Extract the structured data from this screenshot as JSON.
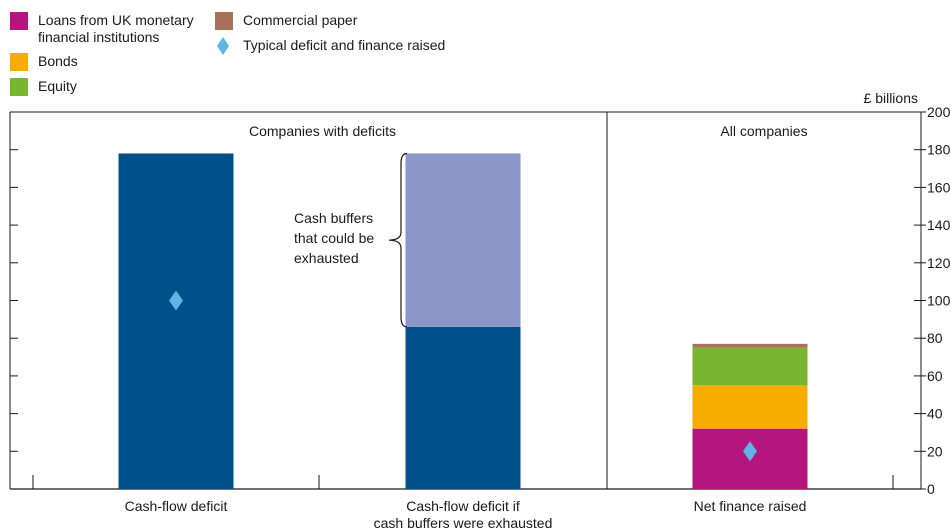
{
  "chart_data": {
    "type": "bar",
    "unit_label": "£ billions",
    "ylim": [
      0,
      200
    ],
    "yticks": [
      0,
      20,
      40,
      60,
      80,
      100,
      120,
      140,
      160,
      180,
      200
    ],
    "panels": [
      {
        "title": "Companies with deficits"
      },
      {
        "title": "All companies"
      }
    ],
    "categories": [
      "Cash-flow deficit",
      "Cash-flow deficit if\ncash buffers were exhausted",
      "Net finance raised"
    ],
    "bars": [
      {
        "category": "Cash-flow deficit",
        "panel": 0,
        "segments": [
          {
            "name": "Cash-flow deficit",
            "from": 0,
            "to": 178,
            "color": "#00508c"
          }
        ],
        "marker": 100
      },
      {
        "category": "Cash-flow deficit if cash buffers were exhausted",
        "panel": 0,
        "segments": [
          {
            "name": "Cash-flow deficit",
            "from": 0,
            "to": 86,
            "color": "#00508c"
          },
          {
            "name": "Cash buffers that could be exhausted",
            "from": 86,
            "to": 178,
            "color": "#8b96c9"
          }
        ]
      },
      {
        "category": "Net finance raised",
        "panel": 1,
        "segments": [
          {
            "name": "Loans from UK monetary financial institutions",
            "from": 0,
            "to": 32,
            "color": "#b5157f"
          },
          {
            "name": "Bonds",
            "from": 32,
            "to": 55,
            "color": "#f7ac00"
          },
          {
            "name": "Equity",
            "from": 55,
            "to": 75,
            "color": "#79b52f"
          },
          {
            "name": "Commercial paper",
            "from": 75,
            "to": 77,
            "color": "#a9705a"
          }
        ],
        "marker": 20
      }
    ],
    "annotation": {
      "lines": [
        "Cash buffers",
        "that could be",
        "exhausted"
      ],
      "range": [
        86,
        178
      ]
    },
    "legend": {
      "placement": "top-left",
      "items": [
        {
          "lines": [
            "Loans from UK monetary",
            "financial institutions"
          ],
          "color": "#b5157f",
          "shape": "square"
        },
        {
          "lines": [
            "Bonds"
          ],
          "color": "#f7ac00",
          "shape": "square"
        },
        {
          "lines": [
            "Equity"
          ],
          "color": "#79b52f",
          "shape": "square"
        },
        {
          "lines": [
            "Commercial paper"
          ],
          "color": "#a9705a",
          "shape": "square"
        },
        {
          "lines": [
            "Typical deficit and finance raised"
          ],
          "color": "#5db4e5",
          "shape": "diamond"
        }
      ]
    },
    "colors": {
      "marker": "#5db4e5",
      "axis": "#1a1a1a"
    }
  }
}
